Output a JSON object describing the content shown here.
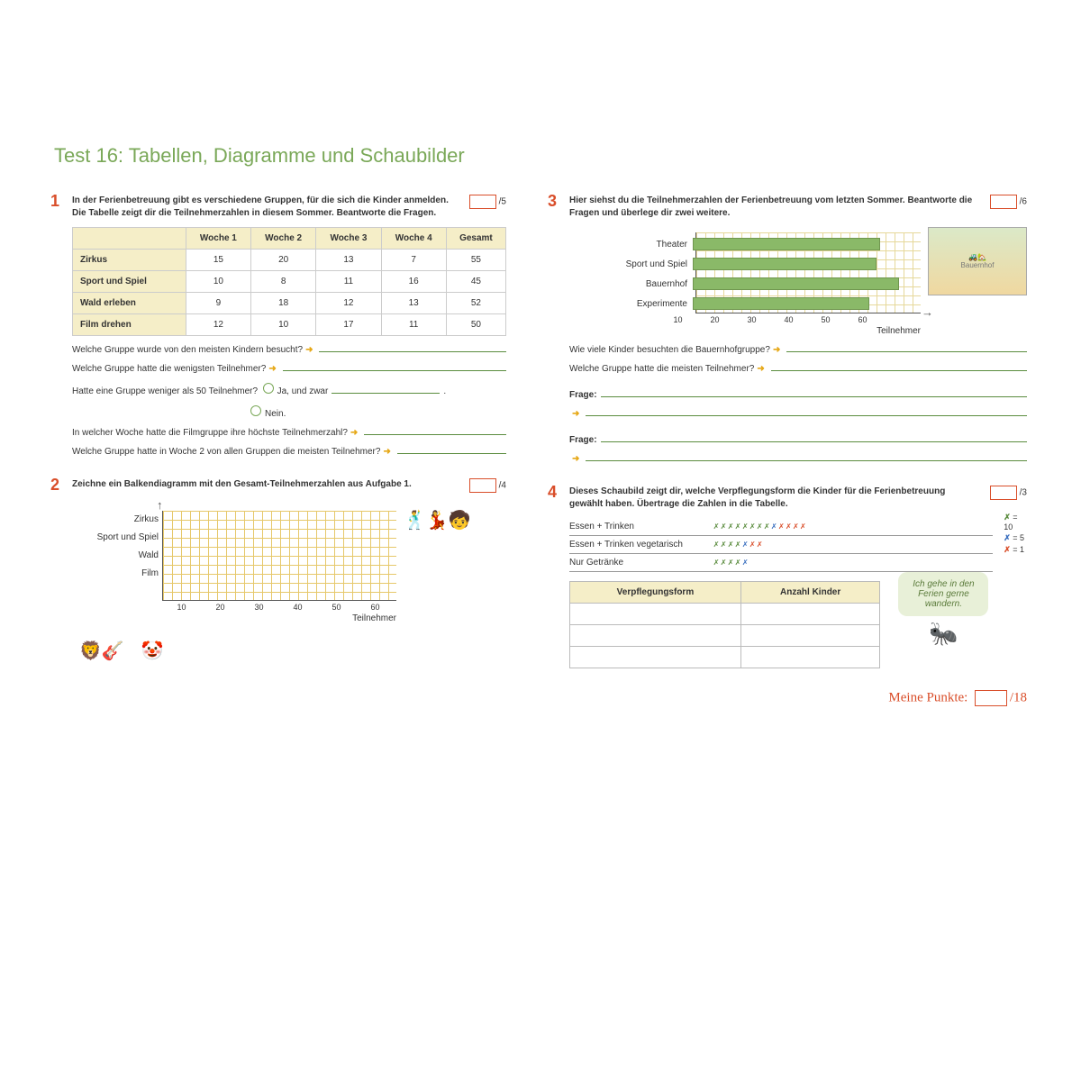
{
  "title": "Test 16:  Tabellen, Diagramme und Schaubilder",
  "colors": {
    "accent": "#7aa858",
    "task_num": "#d94e2a",
    "bar_fill": "#8ab968",
    "grid": "#e6c86a",
    "header_bg": "#f5eec8",
    "arrow": "#e6a817"
  },
  "task1": {
    "num": "1",
    "text": "In der Ferienbetreuung gibt es verschiedene Gruppen, für die sich die Kinder anmelden. Die Tabelle zeigt dir die Teilnehmerzahlen in diesem Sommer. Beantworte die Fragen.",
    "score": "/5",
    "table": {
      "columns": [
        "",
        "Woche 1",
        "Woche 2",
        "Woche 3",
        "Woche 4",
        "Gesamt"
      ],
      "rows": [
        [
          "Zirkus",
          "15",
          "20",
          "13",
          "7",
          "55"
        ],
        [
          "Sport und Spiel",
          "10",
          "8",
          "11",
          "16",
          "45"
        ],
        [
          "Wald erleben",
          "9",
          "18",
          "12",
          "13",
          "52"
        ],
        [
          "Film drehen",
          "12",
          "10",
          "17",
          "11",
          "50"
        ]
      ]
    },
    "q1": "Welche Gruppe wurde von den meisten Kindern besucht?",
    "q2": "Welche Gruppe hatte die wenigsten Teilnehmer?",
    "q3": "Hatte eine Gruppe weniger als 50 Teilnehmer?",
    "q3a": "Ja, und zwar",
    "q3b": "Nein.",
    "q4": "In welcher Woche hatte die Filmgruppe ihre höchste Teilnehmerzahl?",
    "q5": "Welche Gruppe hatte in Woche 2 von allen Gruppen die meisten Teilnehmer?"
  },
  "task2": {
    "num": "2",
    "text": "Zeichne ein Balkendiagramm mit den Gesamt-Teilnehmerzahlen aus Aufgabe 1.",
    "score": "/4",
    "y_labels": [
      "Zirkus",
      "Sport und Spiel",
      "Wald",
      "Film"
    ],
    "x_ticks": [
      "10",
      "20",
      "30",
      "40",
      "50",
      "60"
    ],
    "x_label": "Teilnehmer"
  },
  "task3": {
    "num": "3",
    "text": "Hier siehst du die Teilnehmerzahlen der Ferienbetreuung vom letzten Sommer. Beantworte die Fragen und überlege dir zwei weitere.",
    "score": "/6",
    "chart": {
      "type": "horizontal_bar",
      "xlim": [
        0,
        60
      ],
      "xtick_step": 10,
      "x_label": "Teilnehmer",
      "bar_color": "#8ab968",
      "grid_color": "#e6d89a",
      "series": [
        {
          "label": "Theater",
          "value": 50
        },
        {
          "label": "Sport und Spiel",
          "value": 49
        },
        {
          "label": "Bauernhof",
          "value": 55
        },
        {
          "label": "Experimente",
          "value": 47
        }
      ]
    },
    "q1": "Wie viele Kinder besuchten die Bauernhofgruppe?",
    "q2": "Welche Gruppe hatte die meisten Teilnehmer?",
    "frage": "Frage:"
  },
  "task4": {
    "num": "4",
    "text": "Dieses Schaubild zeigt dir, welche Verpflegungsform die Kinder für die Ferienbetreuung gewählt haben. Übertrage die Zahlen in die Tabelle.",
    "score": "/3",
    "rows": [
      {
        "label": "Essen + Trinken",
        "g": 8,
        "b": 1,
        "r": 4
      },
      {
        "label": "Essen + Trinken vegetarisch",
        "g": 4,
        "b": 1,
        "r": 2
      },
      {
        "label": "Nur Getränke",
        "g": 4,
        "b": 1,
        "r": 0
      }
    ],
    "legend": {
      "g": "= 10",
      "b": "= 5",
      "r": "= 1"
    },
    "fill_table": {
      "columns": [
        "Verpflegungsform",
        "Anzahl Kinder"
      ],
      "blank_rows": 3
    },
    "speech": "Ich gehe in den Ferien gerne wandern."
  },
  "total": {
    "label": "Meine Punkte:",
    "score": "/18"
  }
}
